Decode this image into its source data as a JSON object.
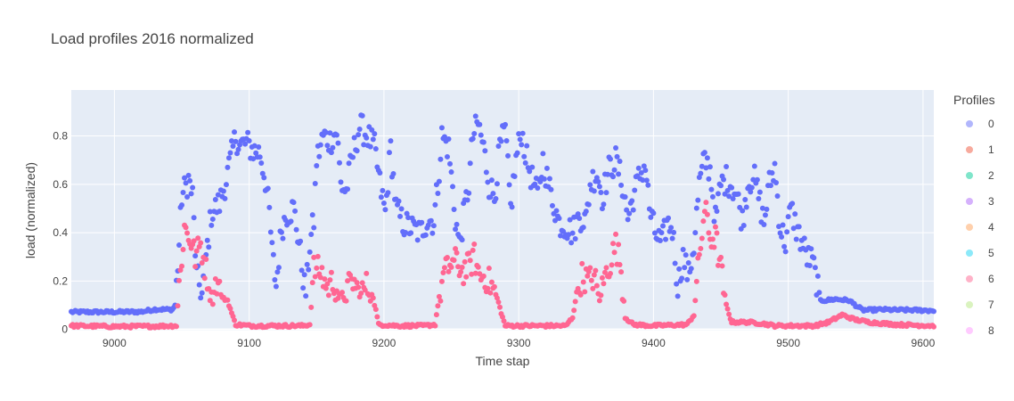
{
  "chart_data": {
    "type": "scatter",
    "title": "Load profiles 2016 normalized",
    "xlabel": "Time stap",
    "ylabel": "load (normalized)",
    "xlim": [
      8968,
      9608
    ],
    "ylim": [
      -0.005,
      0.99
    ],
    "xticks": [
      9000,
      9100,
      9200,
      9300,
      9400,
      9500,
      9600
    ],
    "yticks": [
      0,
      0.2,
      0.4,
      0.6,
      0.8
    ],
    "ytick_labels": [
      "0",
      "0.2",
      "0.4",
      "0.6",
      "0.8"
    ],
    "grid": true,
    "legend_title": "Profiles",
    "legend_position": "right",
    "series": [
      {
        "name": "0",
        "color": "#636efa",
        "visible": true,
        "anchors": [
          [
            8968,
            0.072
          ],
          [
            9000,
            0.072
          ],
          [
            9020,
            0.073
          ],
          [
            9030,
            0.083
          ],
          [
            9043,
            0.082
          ],
          [
            9045,
            0.1
          ],
          [
            9048,
            0.35
          ],
          [
            9050,
            0.55
          ],
          [
            9055,
            0.62
          ],
          [
            9058,
            0.55
          ],
          [
            9061,
            0.22
          ],
          [
            9065,
            0.15
          ],
          [
            9068,
            0.3
          ],
          [
            9072,
            0.48
          ],
          [
            9078,
            0.52
          ],
          [
            9083,
            0.62
          ],
          [
            9087,
            0.72
          ],
          [
            9090,
            0.8
          ],
          [
            9093,
            0.76
          ],
          [
            9098,
            0.77
          ],
          [
            9103,
            0.74
          ],
          [
            9108,
            0.73
          ],
          [
            9112,
            0.62
          ],
          [
            9115,
            0.48
          ],
          [
            9117,
            0.32
          ],
          [
            9120,
            0.18
          ],
          [
            9124,
            0.42
          ],
          [
            9128,
            0.48
          ],
          [
            9133,
            0.5
          ],
          [
            9137,
            0.36
          ],
          [
            9140,
            0.22
          ],
          [
            9142,
            0.14
          ],
          [
            9145,
            0.35
          ],
          [
            9148,
            0.45
          ],
          [
            9150,
            0.7
          ],
          [
            9155,
            0.8
          ],
          [
            9160,
            0.78
          ],
          [
            9165,
            0.82
          ],
          [
            9168,
            0.6
          ],
          [
            9172,
            0.57
          ],
          [
            9176,
            0.7
          ],
          [
            9182,
            0.84
          ],
          [
            9188,
            0.8
          ],
          [
            9193,
            0.75
          ],
          [
            9197,
            0.6
          ],
          [
            9201,
            0.48
          ],
          [
            9205,
            0.75
          ],
          [
            9209,
            0.5
          ],
          [
            9214,
            0.44
          ],
          [
            9220,
            0.42
          ],
          [
            9227,
            0.4
          ],
          [
            9232,
            0.45
          ],
          [
            9237,
            0.45
          ],
          [
            9240,
            0.6
          ],
          [
            9243,
            0.8
          ],
          [
            9248,
            0.75
          ],
          [
            9253,
            0.46
          ],
          [
            9256,
            0.35
          ],
          [
            9260,
            0.5
          ],
          [
            9263,
            0.6
          ],
          [
            9266,
            0.8
          ],
          [
            9270,
            0.85
          ],
          [
            9274,
            0.75
          ],
          [
            9278,
            0.6
          ],
          [
            9282,
            0.55
          ],
          [
            9286,
            0.75
          ],
          [
            9290,
            0.82
          ],
          [
            9294,
            0.5
          ],
          [
            9298,
            0.7
          ],
          [
            9302,
            0.82
          ],
          [
            9306,
            0.7
          ],
          [
            9310,
            0.62
          ],
          [
            9314,
            0.55
          ],
          [
            9318,
            0.7
          ],
          [
            9322,
            0.6
          ],
          [
            9327,
            0.5
          ],
          [
            9330,
            0.44
          ],
          [
            9335,
            0.43
          ],
          [
            9340,
            0.4
          ],
          [
            9345,
            0.47
          ],
          [
            9350,
            0.45
          ],
          [
            9353,
            0.6
          ],
          [
            9358,
            0.65
          ],
          [
            9362,
            0.55
          ],
          [
            9367,
            0.66
          ],
          [
            9372,
            0.7
          ],
          [
            9377,
            0.6
          ],
          [
            9381,
            0.46
          ],
          [
            9385,
            0.55
          ],
          [
            9390,
            0.64
          ],
          [
            9394,
            0.68
          ],
          [
            9397,
            0.5
          ],
          [
            9401,
            0.4
          ],
          [
            9406,
            0.35
          ],
          [
            9410,
            0.44
          ],
          [
            9414,
            0.42
          ],
          [
            9418,
            0.18
          ],
          [
            9422,
            0.3
          ],
          [
            9426,
            0.22
          ],
          [
            9430,
            0.35
          ],
          [
            9434,
            0.6
          ],
          [
            9438,
            0.7
          ],
          [
            9442,
            0.66
          ],
          [
            9446,
            0.45
          ],
          [
            9450,
            0.6
          ],
          [
            9454,
            0.62
          ],
          [
            9458,
            0.6
          ],
          [
            9462,
            0.55
          ],
          [
            9466,
            0.45
          ],
          [
            9470,
            0.6
          ],
          [
            9474,
            0.64
          ],
          [
            9478,
            0.55
          ],
          [
            9482,
            0.44
          ],
          [
            9486,
            0.6
          ],
          [
            9490,
            0.67
          ],
          [
            9494,
            0.42
          ],
          [
            9498,
            0.36
          ],
          [
            9502,
            0.5
          ],
          [
            9506,
            0.42
          ],
          [
            9510,
            0.36
          ],
          [
            9514,
            0.3
          ],
          [
            9518,
            0.28
          ],
          [
            9521,
            0.2
          ],
          [
            9524,
            0.12
          ],
          [
            9528,
            0.12
          ],
          [
            9535,
            0.125
          ],
          [
            9545,
            0.12
          ],
          [
            9550,
            0.1
          ],
          [
            9555,
            0.08
          ],
          [
            9560,
            0.08
          ],
          [
            9570,
            0.082
          ],
          [
            9580,
            0.08
          ],
          [
            9590,
            0.08
          ],
          [
            9608,
            0.078
          ]
        ]
      },
      {
        "name": "1",
        "color": "#ef553b",
        "visible": false
      },
      {
        "name": "2",
        "color": "#00cc96",
        "visible": false
      },
      {
        "name": "3",
        "color": "#ab63fa",
        "visible": false
      },
      {
        "name": "4",
        "color": "#ffa15a",
        "visible": false
      },
      {
        "name": "5",
        "color": "#19d3f3",
        "visible": false
      },
      {
        "name": "6",
        "color": "#ff6692",
        "visible": true,
        "anchors": [
          [
            8968,
            0.015
          ],
          [
            9000,
            0.012
          ],
          [
            9030,
            0.013
          ],
          [
            9046,
            0.015
          ],
          [
            9048,
            0.18
          ],
          [
            9052,
            0.42
          ],
          [
            9056,
            0.38
          ],
          [
            9060,
            0.3
          ],
          [
            9064,
            0.35
          ],
          [
            9068,
            0.24
          ],
          [
            9072,
            0.15
          ],
          [
            9076,
            0.2
          ],
          [
            9080,
            0.13
          ],
          [
            9084,
            0.12
          ],
          [
            9088,
            0.05
          ],
          [
            9090,
            0.02
          ],
          [
            9100,
            0.015
          ],
          [
            9120,
            0.015
          ],
          [
            9140,
            0.015
          ],
          [
            9145,
            0.02
          ],
          [
            9148,
            0.25
          ],
          [
            9153,
            0.24
          ],
          [
            9158,
            0.17
          ],
          [
            9162,
            0.2
          ],
          [
            9167,
            0.14
          ],
          [
            9172,
            0.16
          ],
          [
            9177,
            0.2
          ],
          [
            9182,
            0.14
          ],
          [
            9187,
            0.18
          ],
          [
            9191,
            0.15
          ],
          [
            9194,
            0.08
          ],
          [
            9196,
            0.02
          ],
          [
            9210,
            0.015
          ],
          [
            9230,
            0.015
          ],
          [
            9238,
            0.02
          ],
          [
            9240,
            0.1
          ],
          [
            9244,
            0.22
          ],
          [
            9249,
            0.27
          ],
          [
            9254,
            0.28
          ],
          [
            9258,
            0.24
          ],
          [
            9263,
            0.26
          ],
          [
            9267,
            0.3
          ],
          [
            9271,
            0.22
          ],
          [
            9275,
            0.22
          ],
          [
            9280,
            0.18
          ],
          [
            9284,
            0.13
          ],
          [
            9288,
            0.05
          ],
          [
            9290,
            0.015
          ],
          [
            9310,
            0.015
          ],
          [
            9335,
            0.015
          ],
          [
            9340,
            0.05
          ],
          [
            9343,
            0.15
          ],
          [
            9347,
            0.22
          ],
          [
            9352,
            0.2
          ],
          [
            9356,
            0.22
          ],
          [
            9360,
            0.12
          ],
          [
            9364,
            0.22
          ],
          [
            9368,
            0.28
          ],
          [
            9372,
            0.35
          ],
          [
            9376,
            0.25
          ],
          [
            9379,
            0.05
          ],
          [
            9385,
            0.02
          ],
          [
            9400,
            0.015
          ],
          [
            9425,
            0.02
          ],
          [
            9430,
            0.06
          ],
          [
            9434,
            0.3
          ],
          [
            9438,
            0.5
          ],
          [
            9442,
            0.38
          ],
          [
            9446,
            0.38
          ],
          [
            9450,
            0.25
          ],
          [
            9454,
            0.1
          ],
          [
            9458,
            0.03
          ],
          [
            9470,
            0.03
          ],
          [
            9480,
            0.025
          ],
          [
            9490,
            0.015
          ],
          [
            9520,
            0.015
          ],
          [
            9530,
            0.03
          ],
          [
            9540,
            0.06
          ],
          [
            9550,
            0.04
          ],
          [
            9560,
            0.03
          ],
          [
            9570,
            0.025
          ],
          [
            9580,
            0.02
          ],
          [
            9608,
            0.015
          ]
        ]
      },
      {
        "name": "7",
        "color": "#b6e880",
        "visible": false
      },
      {
        "name": "8",
        "color": "#ff97ff",
        "visible": false
      }
    ]
  }
}
